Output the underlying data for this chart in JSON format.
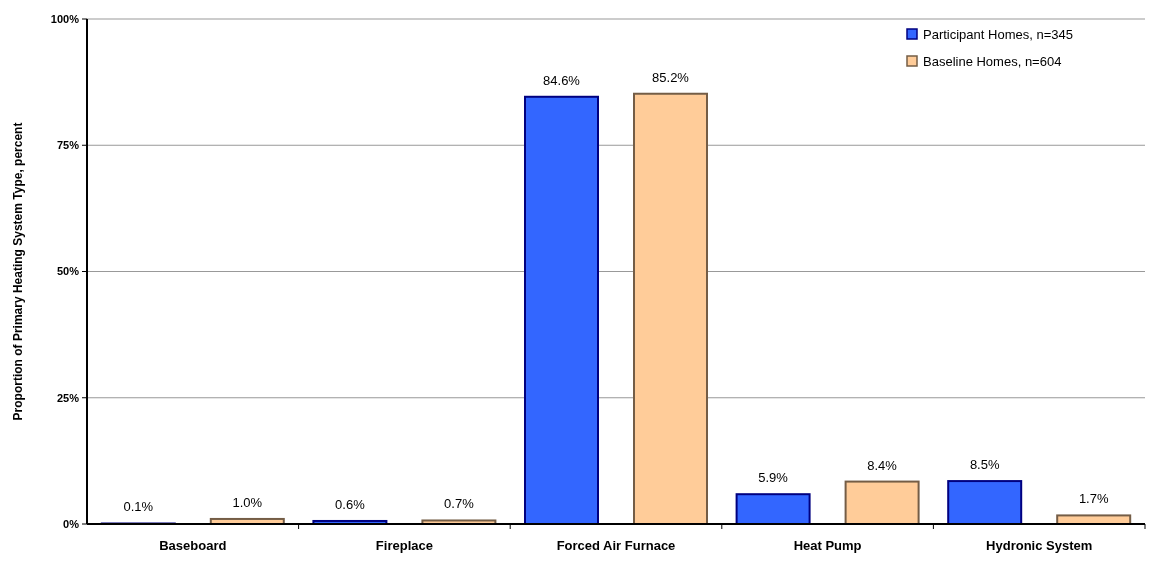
{
  "chart_data": {
    "type": "bar",
    "ylabel": "Proportion of Primary Heating System Type, percent",
    "categories": [
      "Baseboard",
      "Fireplace",
      "Forced Air Furnace",
      "Heat Pump",
      "Hydronic System"
    ],
    "series": [
      {
        "name": "Participant Homes, n=345",
        "color": "#3366ff",
        "values": [
          0.1,
          0.6,
          84.6,
          5.9,
          8.5
        ],
        "value_labels": [
          "0.1%",
          "0.6%",
          "84.6%",
          "5.9%",
          "8.5%"
        ]
      },
      {
        "name": "Baseline Homes, n=604",
        "color": "#ffcc99",
        "values": [
          1.0,
          0.7,
          85.2,
          8.4,
          1.7
        ],
        "value_labels": [
          "1.0%",
          "0.7%",
          "85.2%",
          "8.4%",
          "1.7%"
        ]
      }
    ],
    "ylim": [
      0,
      100
    ],
    "yticks": [
      {
        "value": 0,
        "label": "0%"
      },
      {
        "value": 25,
        "label": "25%"
      },
      {
        "value": 50,
        "label": "50%"
      },
      {
        "value": 75,
        "label": "75%"
      },
      {
        "value": 100,
        "label": "100%"
      }
    ],
    "grid": "y",
    "legend": "top right"
  }
}
